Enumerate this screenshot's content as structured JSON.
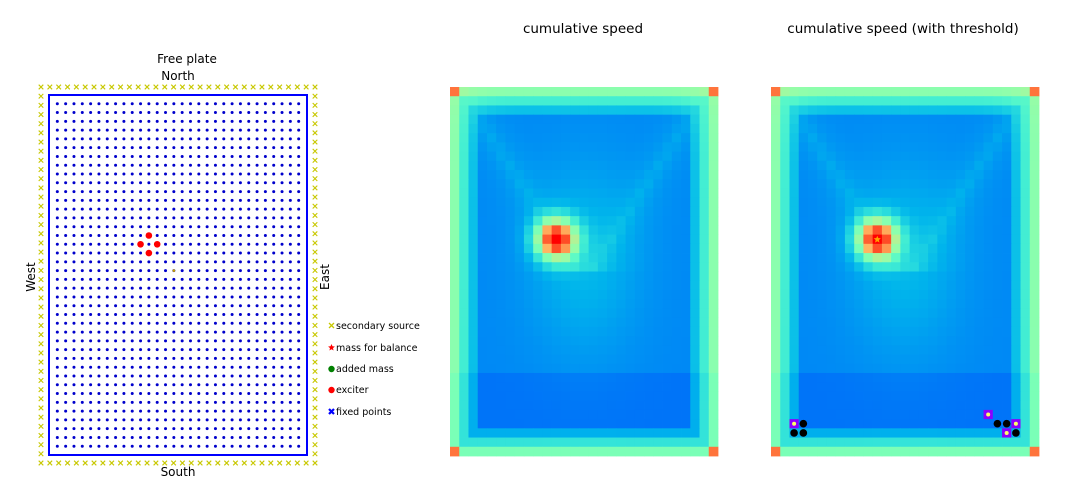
{
  "panels": {
    "plate": {
      "title": "Free plate",
      "north": "North",
      "south": "South",
      "west": "West",
      "east": "East"
    },
    "speed": {
      "title": "cumulative speed"
    },
    "threshold": {
      "title": "cumulative speed (with threshold)"
    }
  },
  "legend": {
    "items": [
      {
        "label": "secondary source",
        "marker": "x",
        "color": "#c8c800"
      },
      {
        "label": "mass for balance",
        "marker": "star",
        "color": "#ff0000"
      },
      {
        "label": "added mass",
        "marker": "circle",
        "color": "#008000"
      },
      {
        "label": "exciter",
        "marker": "circle",
        "color": "#ff0000"
      },
      {
        "label": "fixed points",
        "marker": "x-bold",
        "color": "#0000ff"
      }
    ]
  },
  "chart_data": [
    {
      "type": "scatter",
      "title": "Free plate",
      "grid_points": {
        "cols": 30,
        "rows": 40,
        "color": "#0000cc"
      },
      "boundary": {
        "color": "#0000ff",
        "style": "fixed points"
      },
      "secondary_sources": {
        "cols": 32,
        "rows": 42,
        "color": "#c8c800"
      },
      "exciters": [
        {
          "col": 11,
          "row": 15
        },
        {
          "col": 10,
          "row": 16
        },
        {
          "col": 12,
          "row": 16
        },
        {
          "col": 11,
          "row": 17
        }
      ],
      "centre_marker": {
        "col": 14,
        "row": 19,
        "color": "#c8a000"
      }
    },
    {
      "type": "heatmap",
      "title": "cumulative speed",
      "cols": 29,
      "rows": 40,
      "colormap": "rainbow",
      "hotspot": {
        "col": 11,
        "row": 16
      }
    },
    {
      "type": "heatmap",
      "title": "cumulative speed (with threshold)",
      "cols": 29,
      "rows": 40,
      "colormap": "rainbow",
      "hotspot": {
        "col": 11,
        "row": 16
      },
      "marked_star": {
        "col": 11,
        "row": 16,
        "color": "#ffa500"
      },
      "threshold_cells_black": [
        {
          "col": 3,
          "row": 36
        },
        {
          "col": 3,
          "row": 37
        },
        {
          "col": 2,
          "row": 37
        },
        {
          "col": 24,
          "row": 36
        },
        {
          "col": 25,
          "row": 36
        },
        {
          "col": 26,
          "row": 37
        }
      ],
      "threshold_cells_purple": [
        {
          "col": 2,
          "row": 36
        },
        {
          "col": 23,
          "row": 35
        },
        {
          "col": 26,
          "row": 36
        },
        {
          "col": 25,
          "row": 37
        }
      ],
      "threshold_dots_yellow": [
        {
          "col": 2,
          "row": 36
        },
        {
          "col": 23,
          "row": 35
        },
        {
          "col": 26,
          "row": 36
        },
        {
          "col": 25,
          "row": 37
        }
      ]
    }
  ]
}
